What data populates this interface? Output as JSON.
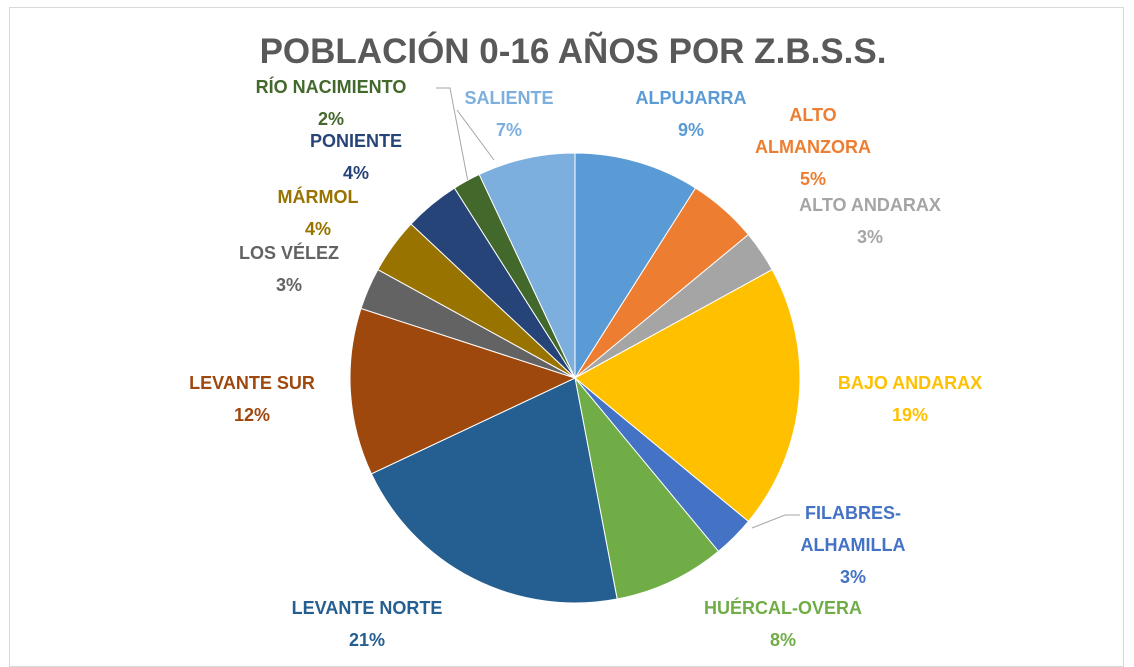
{
  "chart_data": {
    "type": "pie",
    "title": "POBLACIÓN 0-16 AÑOS POR Z.B.S.S.",
    "categories": [
      "ALPUJARRA",
      "ALTO ALMANZORA",
      "ALTO ANDARAX",
      "BAJO ANDARAX",
      "FILABRES-ALHAMILLA",
      "HUÉRCAL-OVERA",
      "LEVANTE NORTE",
      "LEVANTE SUR",
      "LOS VÉLEZ",
      "MÁRMOL",
      "PONIENTE",
      "RÍO NACIMIENTO",
      "SALIENTE"
    ],
    "values": [
      9,
      5,
      3,
      19,
      3,
      8,
      21,
      12,
      3,
      4,
      4,
      2,
      7
    ],
    "value_labels": [
      "9%",
      "5%",
      "3%",
      "19%",
      "3%",
      "8%",
      "21%",
      "12%",
      "3%",
      "4%",
      "4%",
      "2%",
      "7%"
    ],
    "colors": [
      "#5b9bd5",
      "#ed7d31",
      "#a5a5a5",
      "#ffc000",
      "#4472c4",
      "#70ad47",
      "#255e91",
      "#9e480e",
      "#636363",
      "#997300",
      "#264478",
      "#43682b",
      "#7cafdd"
    ]
  }
}
